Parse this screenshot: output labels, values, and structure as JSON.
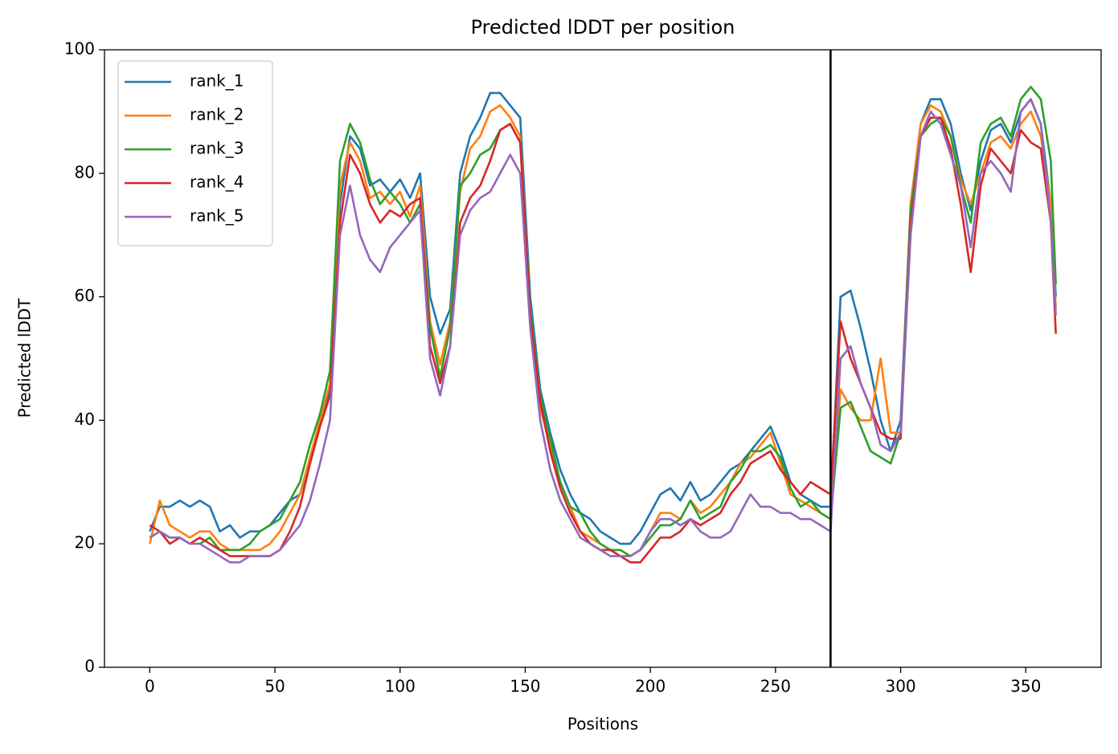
{
  "chart_data": {
    "type": "line",
    "title": "Predicted lDDT per position",
    "x_label": "Positions",
    "y_label": "Predicted lDDT",
    "xlim": [
      -18.1,
      380.1
    ],
    "ylim": [
      0,
      100
    ],
    "xticks": [
      0,
      50,
      100,
      150,
      200,
      250,
      300,
      350
    ],
    "yticks": [
      0,
      20,
      40,
      60,
      80,
      100
    ],
    "vlines": [
      272
    ],
    "legend": "upper left",
    "x": [
      0,
      4,
      8,
      12,
      16,
      20,
      24,
      28,
      32,
      36,
      40,
      44,
      48,
      52,
      56,
      60,
      64,
      68,
      72,
      76,
      80,
      84,
      88,
      92,
      96,
      100,
      104,
      108,
      112,
      116,
      120,
      124,
      128,
      132,
      136,
      140,
      144,
      148,
      152,
      156,
      160,
      164,
      168,
      172,
      176,
      180,
      184,
      188,
      192,
      196,
      200,
      204,
      208,
      212,
      216,
      220,
      224,
      228,
      232,
      236,
      240,
      244,
      248,
      252,
      256,
      260,
      264,
      268,
      272,
      276,
      280,
      284,
      288,
      292,
      296,
      300,
      304,
      308,
      312,
      316,
      320,
      324,
      328,
      332,
      336,
      340,
      344,
      348,
      352,
      356,
      360,
      362
    ],
    "series": [
      {
        "name": "rank_1",
        "color": "#1f77b4",
        "values": [
          22,
          26,
          26,
          27,
          26,
          27,
          26,
          22,
          23,
          21,
          22,
          22,
          23,
          25,
          27,
          28,
          33,
          39,
          45,
          75,
          86,
          84,
          78,
          79,
          77,
          79,
          76,
          80,
          60,
          54,
          58,
          80,
          86,
          89,
          93,
          93,
          91,
          89,
          60,
          45,
          38,
          32,
          28,
          25,
          24,
          22,
          21,
          20,
          20,
          22,
          25,
          28,
          29,
          27,
          30,
          27,
          28,
          30,
          32,
          33,
          35,
          37,
          39,
          35,
          30,
          28,
          27,
          26,
          26,
          60,
          61,
          55,
          48,
          40,
          35,
          40,
          75,
          88,
          92,
          92,
          88,
          80,
          74,
          82,
          87,
          88,
          85,
          90,
          92,
          88,
          75,
          60
        ]
      },
      {
        "name": "rank_2",
        "color": "#ff7f0e",
        "values": [
          20,
          27,
          23,
          22,
          21,
          22,
          22,
          20,
          19,
          19,
          19,
          19,
          20,
          22,
          25,
          28,
          34,
          40,
          46,
          78,
          85,
          82,
          76,
          77,
          75,
          77,
          73,
          78,
          56,
          49,
          56,
          77,
          84,
          86,
          90,
          91,
          89,
          86,
          58,
          42,
          36,
          30,
          26,
          22,
          21,
          20,
          19,
          18,
          18,
          19,
          22,
          25,
          25,
          24,
          27,
          25,
          26,
          28,
          30,
          33,
          34,
          36,
          38,
          33,
          28,
          27,
          26,
          25,
          24,
          45,
          42,
          40,
          40,
          50,
          38,
          38,
          75,
          88,
          91,
          90,
          86,
          79,
          75,
          80,
          85,
          86,
          84,
          88,
          90,
          86,
          75,
          58
        ]
      },
      {
        "name": "rank_3",
        "color": "#2ca02c",
        "values": [
          21,
          22,
          21,
          21,
          20,
          20,
          21,
          19,
          19,
          19,
          20,
          22,
          23,
          24,
          27,
          30,
          36,
          41,
          48,
          82,
          88,
          85,
          79,
          75,
          77,
          75,
          72,
          75,
          55,
          47,
          55,
          78,
          80,
          83,
          84,
          87,
          88,
          85,
          58,
          44,
          37,
          30,
          26,
          25,
          22,
          20,
          19,
          19,
          18,
          19,
          21,
          23,
          23,
          24,
          27,
          24,
          25,
          26,
          30,
          32,
          35,
          35,
          36,
          34,
          29,
          26,
          27,
          25,
          24,
          42,
          43,
          39,
          35,
          34,
          33,
          38,
          74,
          86,
          88,
          89,
          86,
          78,
          72,
          85,
          88,
          89,
          86,
          92,
          94,
          92,
          82,
          62
        ]
      },
      {
        "name": "rank_4",
        "color": "#d62728",
        "values": [
          23,
          22,
          20,
          21,
          20,
          21,
          20,
          19,
          18,
          18,
          18,
          18,
          18,
          19,
          22,
          26,
          33,
          39,
          44,
          72,
          83,
          80,
          75,
          72,
          74,
          73,
          75,
          76,
          52,
          46,
          52,
          72,
          76,
          78,
          82,
          87,
          88,
          85,
          57,
          43,
          35,
          29,
          25,
          22,
          20,
          19,
          19,
          18,
          17,
          17,
          19,
          21,
          21,
          22,
          24,
          23,
          24,
          25,
          28,
          30,
          33,
          34,
          35,
          32,
          30,
          28,
          30,
          29,
          28,
          56,
          50,
          46,
          42,
          38,
          37,
          37,
          72,
          86,
          89,
          89,
          84,
          75,
          64,
          78,
          84,
          82,
          80,
          87,
          85,
          84,
          72,
          54
        ]
      },
      {
        "name": "rank_5",
        "color": "#9467bd",
        "values": [
          21,
          22,
          21,
          21,
          20,
          20,
          19,
          18,
          17,
          17,
          18,
          18,
          18,
          19,
          21,
          23,
          27,
          33,
          40,
          70,
          78,
          70,
          66,
          64,
          68,
          70,
          72,
          74,
          50,
          44,
          52,
          70,
          74,
          76,
          77,
          80,
          83,
          80,
          55,
          40,
          32,
          27,
          24,
          21,
          20,
          19,
          18,
          18,
          18,
          19,
          22,
          24,
          24,
          23,
          24,
          22,
          21,
          21,
          22,
          25,
          28,
          26,
          26,
          25,
          25,
          24,
          24,
          23,
          22,
          50,
          52,
          46,
          42,
          36,
          35,
          38,
          70,
          86,
          90,
          88,
          83,
          78,
          68,
          80,
          82,
          80,
          77,
          90,
          92,
          88,
          72,
          57
        ]
      }
    ]
  }
}
